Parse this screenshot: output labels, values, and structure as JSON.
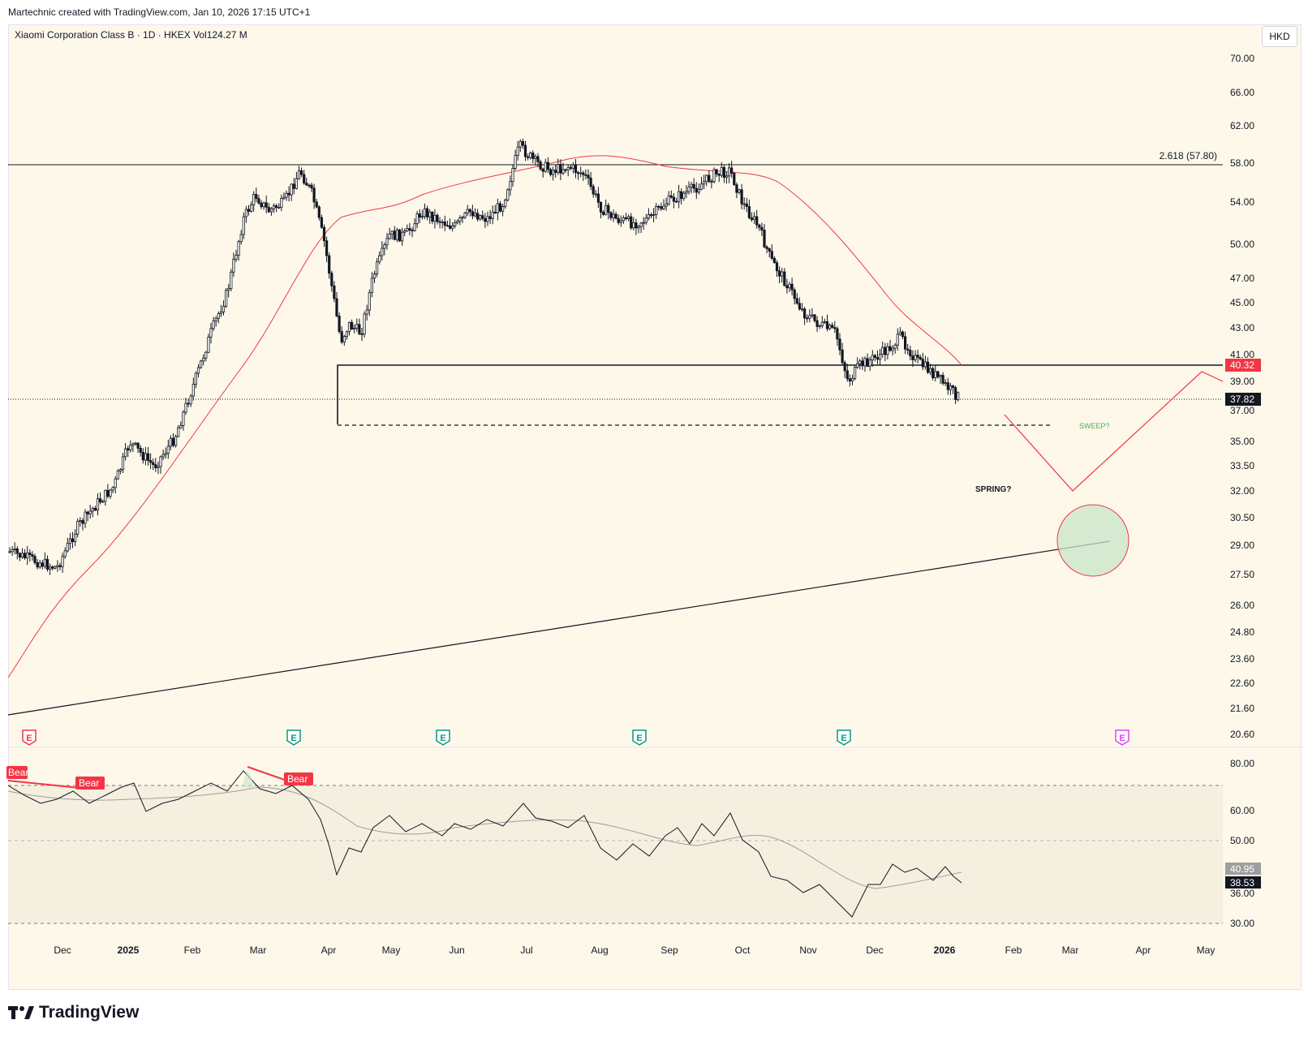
{
  "credit": "Martechnic created with TradingView.com, Jan 10, 2026 17:15 UTC+1",
  "symbol_line": "Xiaomi Corporation Class B · 1D · HKEX  Vol124.27 M",
  "currency": "HKD",
  "brand": "TradingView",
  "price_axis": [
    "70.00",
    "66.00",
    "62.00",
    "58.00",
    "54.00",
    "50.00",
    "47.00",
    "45.00",
    "43.00",
    "41.00",
    "39.00",
    "37.00",
    "35.00",
    "33.50",
    "32.00",
    "30.50",
    "29.00",
    "27.50",
    "26.00",
    "24.80",
    "23.60",
    "22.60",
    "21.60",
    "20.60"
  ],
  "last_price_label": "37.82",
  "level_price_label": "40.32",
  "fib_label": "2.618 (57.80)",
  "annotations": {
    "sweep": "SWEEP?",
    "spring": "SPRING?"
  },
  "earnings_marker": "E",
  "rsi_axis": [
    "80.00",
    "60.00",
    "50.00",
    "36.00",
    "30.00"
  ],
  "rsi_labels": {
    "rsi_value": "38.53",
    "rsi_ma_value": "40.95"
  },
  "divergence_labels": [
    "Bear",
    "Bear",
    "Bear"
  ],
  "time_axis": [
    "Dec",
    "2025",
    "Feb",
    "Mar",
    "Apr",
    "May",
    "Jun",
    "Jul",
    "Aug",
    "Sep",
    "Oct",
    "Nov",
    "Dec",
    "2026",
    "Feb",
    "Mar",
    "Apr",
    "May"
  ],
  "colors": {
    "background": "#fdf8ea",
    "up": "#ffffff",
    "down": "#131722",
    "ma": "#f23645",
    "rsi_band": "#f5efe0",
    "earnings_green": "#089981",
    "earnings_purple": "#e040fb"
  },
  "icons": [
    "tradingview-logo-icon",
    "earnings-icon"
  ]
}
